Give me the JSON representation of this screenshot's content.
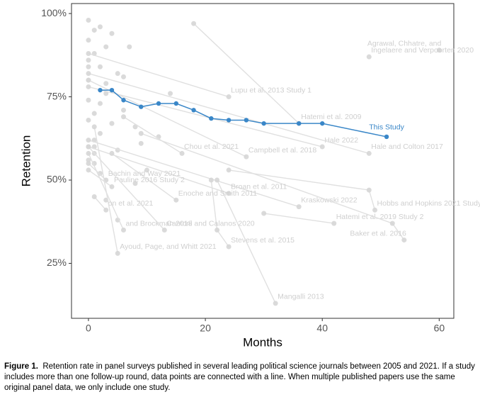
{
  "chart_data": {
    "type": "line",
    "xlabel": "Months",
    "ylabel": "Retention",
    "xlim": [
      -2.9,
      62.5
    ],
    "ylim": [
      8.5,
      103
    ],
    "xticks": [
      0,
      20,
      40,
      60
    ],
    "yticks": [
      {
        "value": 25,
        "label": "25%"
      },
      {
        "value": 50,
        "label": "50%"
      },
      {
        "value": 75,
        "label": "75%"
      },
      {
        "value": 100,
        "label": "100%"
      }
    ],
    "series": [
      {
        "color": "#d6d6d6",
        "x": [
          0,
          0,
          0,
          0,
          0,
          1,
          1,
          1,
          1,
          2,
          2,
          2,
          3,
          3,
          4,
          4,
          5,
          5,
          6,
          6,
          7,
          8,
          9,
          10,
          12,
          14,
          0,
          1,
          2,
          3,
          0,
          1,
          2,
          0,
          1,
          3,
          5,
          8
        ],
        "y": [
          98,
          92,
          86,
          80,
          74,
          95,
          88,
          70,
          60,
          96,
          84,
          64,
          90,
          76,
          94,
          67,
          82,
          59,
          81,
          71,
          90,
          66,
          61,
          53,
          63,
          76,
          56,
          55,
          52,
          79,
          68,
          62,
          73,
          84,
          58,
          44,
          38,
          49
        ]
      },
      {
        "name": "Agrawal, Chhatre, and",
        "color": "#d6d6d6",
        "x": [
          60
        ],
        "y": [
          89
        ]
      },
      {
        "name": "Ingelaere and Verpoorten 2020",
        "color": "#d6d6d6",
        "x": [
          48
        ],
        "y": [
          87
        ]
      },
      {
        "name": "Hatemi et al. 2009",
        "color": "#d6d6d6",
        "x": [
          18,
          36
        ],
        "y": [
          97,
          67
        ]
      },
      {
        "name": "Hale 2022",
        "color": "#d6d6d6",
        "x": [
          0,
          40
        ],
        "y": [
          78,
          60
        ]
      },
      {
        "name": "Hale and Colton 2017",
        "color": "#d6d6d6",
        "x": [
          0,
          48
        ],
        "y": [
          82,
          58
        ]
      },
      {
        "name": "Campbell et al. 2018",
        "color": "#d6d6d6",
        "x": [
          0,
          27
        ],
        "y": [
          80,
          57
        ]
      },
      {
        "name": "Lupu et al. 2013 Study 1",
        "color": "#d6d6d6",
        "x": [
          0,
          24
        ],
        "y": [
          88,
          75
        ]
      },
      {
        "name": "Chou et al. 2021",
        "color": "#d6d6d6",
        "x": [
          6,
          16
        ],
        "y": [
          69,
          58
        ]
      },
      {
        "name": "Kraskowski 2022",
        "color": "#d6d6d6",
        "x": [
          0,
          36
        ],
        "y": [
          62,
          42
        ]
      },
      {
        "name": "Hobbs and Hopkins 2021 Study 2",
        "color": "#d6d6d6",
        "x": [
          24,
          48,
          49
        ],
        "y": [
          53,
          47,
          41
        ]
      },
      {
        "name": "Hatemi et al. 2019 Study 2",
        "color": "#d6d6d6",
        "x": [
          30,
          42
        ],
        "y": [
          40,
          37
        ]
      },
      {
        "name": "Baker et al. 2016",
        "color": "#d6d6d6",
        "x": [
          9,
          52,
          54
        ],
        "y": [
          64,
          37,
          32
        ]
      },
      {
        "name": "Stevens et al. 2015",
        "color": "#d6d6d6",
        "x": [
          21,
          22,
          24
        ],
        "y": [
          50,
          35,
          30
        ]
      },
      {
        "name": "Mangalli 2013",
        "color": "#d6d6d6",
        "x": [
          22,
          32
        ],
        "y": [
          50,
          13
        ]
      },
      {
        "name": "Broan et al. 2011",
        "color": "#d6d6d6",
        "x": [
          0,
          24
        ],
        "y": [
          60,
          46
        ]
      },
      {
        "name": "Enoche and Smith 2011",
        "color": "#d6d6d6",
        "x": [
          4,
          15
        ],
        "y": [
          58,
          44
        ]
      },
      {
        "name": "Bachin and Way 2021",
        "color": "#d6d6d6",
        "x": [
          0,
          3
        ],
        "y": [
          55,
          50
        ]
      },
      {
        "name": "Pauline 2016 Study 2",
        "color": "#d6d6d6",
        "x": [
          0,
          4
        ],
        "y": [
          53,
          48
        ]
      },
      {
        "name": "and Brockman 2018",
        "color": "#d6d6d6",
        "x": [
          0,
          6
        ],
        "y": [
          58,
          35
        ]
      },
      {
        "name": "on et al. 2021",
        "color": "#d6d6d6",
        "x": [
          1,
          3
        ],
        "y": [
          45,
          41
        ]
      },
      {
        "name": "Cantoni and Calanos 2020",
        "color": "#d6d6d6",
        "x": [
          0,
          13
        ],
        "y": [
          60,
          35
        ]
      },
      {
        "name": "Ayoud, Page, and Whitt 2021",
        "color": "#d6d6d6",
        "x": [
          1,
          5
        ],
        "y": [
          66,
          28
        ]
      },
      {
        "name": "This Study",
        "color": "#3a87c8",
        "x": [
          2,
          4,
          6,
          9,
          12,
          15,
          18,
          21,
          24,
          27,
          30,
          36,
          40,
          51
        ],
        "y": [
          77,
          77,
          74,
          72,
          73,
          73,
          71,
          68.5,
          68,
          68,
          67,
          67,
          67,
          63
        ]
      }
    ]
  },
  "caption": {
    "label": "Figure 1.",
    "text": "Retention rate in panel surveys published in several leading political science journals between 2005 and 2021. If a study includes more than one follow-up round, data points are connected with a line. When multiple published papers use the same original panel data, we only include one study."
  }
}
